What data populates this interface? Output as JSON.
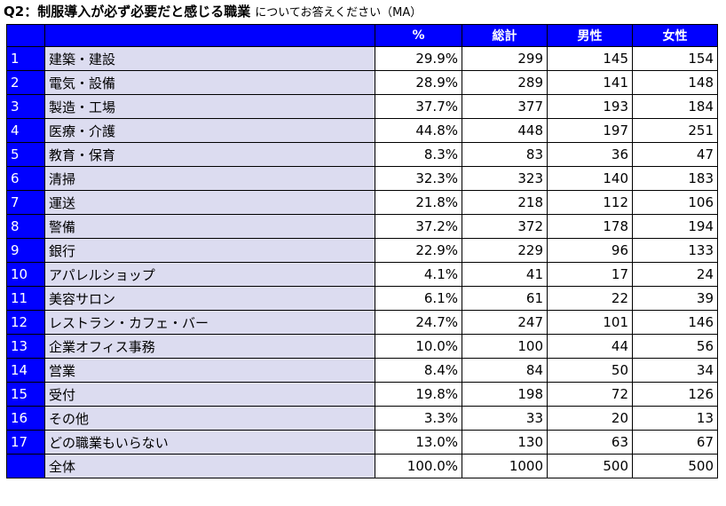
{
  "title": {
    "main": "Q2：制服導入が必ず必要だと感じる職業",
    "sub": "についてお答えください（MA）"
  },
  "table": {
    "headers": [
      "",
      "",
      "%",
      "総計",
      "男性",
      "女性"
    ],
    "rows": [
      {
        "no": "1",
        "label": "建築・建設",
        "pct": "29.9%",
        "total": "299",
        "male": "145",
        "female": "154"
      },
      {
        "no": "2",
        "label": "電気・設備",
        "pct": "28.9%",
        "total": "289",
        "male": "141",
        "female": "148"
      },
      {
        "no": "3",
        "label": "製造・工場",
        "pct": "37.7%",
        "total": "377",
        "male": "193",
        "female": "184"
      },
      {
        "no": "4",
        "label": "医療・介護",
        "pct": "44.8%",
        "total": "448",
        "male": "197",
        "female": "251"
      },
      {
        "no": "5",
        "label": "教育・保育",
        "pct": "8.3%",
        "total": "83",
        "male": "36",
        "female": "47"
      },
      {
        "no": "6",
        "label": "清掃",
        "pct": "32.3%",
        "total": "323",
        "male": "140",
        "female": "183"
      },
      {
        "no": "7",
        "label": "運送",
        "pct": "21.8%",
        "total": "218",
        "male": "112",
        "female": "106"
      },
      {
        "no": "8",
        "label": "警備",
        "pct": "37.2%",
        "total": "372",
        "male": "178",
        "female": "194"
      },
      {
        "no": "9",
        "label": "銀行",
        "pct": "22.9%",
        "total": "229",
        "male": "96",
        "female": "133"
      },
      {
        "no": "10",
        "label": "アパレルショップ",
        "pct": "4.1%",
        "total": "41",
        "male": "17",
        "female": "24"
      },
      {
        "no": "11",
        "label": "美容サロン",
        "pct": "6.1%",
        "total": "61",
        "male": "22",
        "female": "39"
      },
      {
        "no": "12",
        "label": "レストラン・カフェ・バー",
        "pct": "24.7%",
        "total": "247",
        "male": "101",
        "female": "146"
      },
      {
        "no": "13",
        "label": "企業オフィス事務",
        "pct": "10.0%",
        "total": "100",
        "male": "44",
        "female": "56"
      },
      {
        "no": "14",
        "label": "営業",
        "pct": "8.4%",
        "total": "84",
        "male": "50",
        "female": "34"
      },
      {
        "no": "15",
        "label": "受付",
        "pct": "19.8%",
        "total": "198",
        "male": "72",
        "female": "126"
      },
      {
        "no": "16",
        "label": "その他",
        "pct": "3.3%",
        "total": "33",
        "male": "20",
        "female": "13"
      },
      {
        "no": "17",
        "label": "どの職業もいらない",
        "pct": "13.0%",
        "total": "130",
        "male": "63",
        "female": "67"
      }
    ],
    "total_row": {
      "no": "",
      "label": "全体",
      "pct": "100.0%",
      "total": "1000",
      "male": "500",
      "female": "500"
    }
  },
  "colors": {
    "header_bg": "#0000ff",
    "header_text": "#ffffff",
    "label_bg": "#dcdcf0",
    "border": "#000000"
  }
}
